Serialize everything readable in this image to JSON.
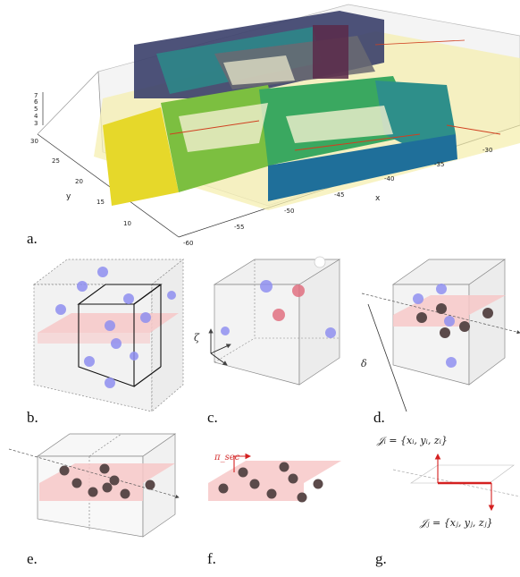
{
  "panels": [
    {
      "id": "a",
      "label": "a."
    },
    {
      "id": "b",
      "label": "b."
    },
    {
      "id": "c",
      "label": "c."
    },
    {
      "id": "d",
      "label": "d."
    },
    {
      "id": "e",
      "label": "e."
    },
    {
      "id": "f",
      "label": "f."
    },
    {
      "id": "g",
      "label": "g."
    }
  ],
  "panel_a": {
    "z_ticks": [
      "7",
      "6",
      "5",
      "4",
      "3"
    ],
    "y_ticks": [
      "30",
      "25",
      "20",
      "15",
      "10"
    ],
    "x_ticks": [
      "-60",
      "-55",
      "-50",
      "-45",
      "-40",
      "-35",
      "-30"
    ],
    "x_label": "x",
    "y_label": "y"
  },
  "annotations": {
    "zeta": "ζ",
    "delta": "δ",
    "pi_sec": "π_sec",
    "I_i": "𝒥ᵢ = {xᵢ, yᵢ, zᵢ}",
    "I_j": "𝒥ⱼ = {xⱼ, yⱼ, zⱼ}"
  },
  "colors": {
    "point_blue": "#8f8ff0",
    "point_red": "#e07080",
    "plane_pink": "#f7c8c8",
    "point_dark": "#5b4a4a",
    "edge_red": "#d42020"
  }
}
